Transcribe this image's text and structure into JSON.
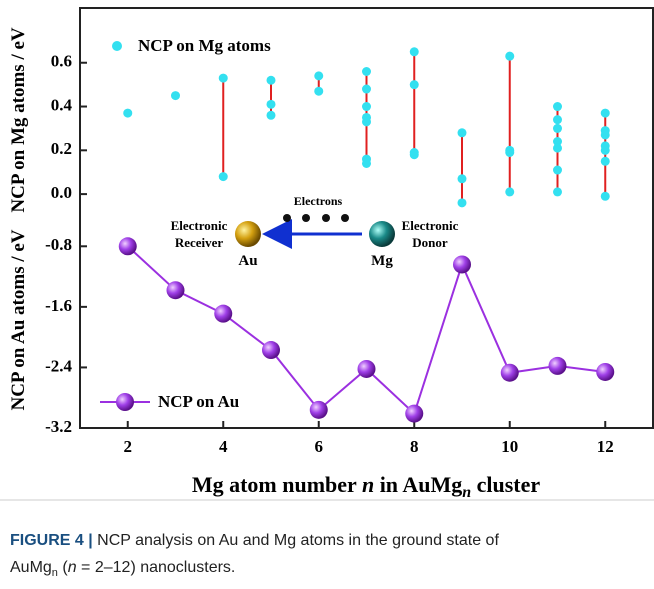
{
  "chart_data": [
    {
      "type": "scatter",
      "ylabel": "NCP on Mg atoms / eV",
      "series": [
        {
          "name": "NCP on Mg atoms",
          "color": "#33e0f0",
          "x": [
            2,
            3,
            4,
            4,
            5,
            5,
            5,
            6,
            6,
            7,
            7,
            7,
            7,
            7,
            7,
            7,
            8,
            8,
            8,
            8,
            9,
            9,
            9,
            10,
            10,
            10,
            10,
            11,
            11,
            11,
            11,
            11,
            11,
            11,
            12,
            12,
            12,
            12,
            12,
            12,
            12
          ],
          "values": [
            0.37,
            0.45,
            0.53,
            0.08,
            0.52,
            0.41,
            0.36,
            0.54,
            0.47,
            0.56,
            0.48,
            0.4,
            0.35,
            0.33,
            0.16,
            0.14,
            0.65,
            0.5,
            0.19,
            0.18,
            0.28,
            0.07,
            -0.04,
            0.63,
            0.2,
            0.19,
            0.01,
            0.4,
            0.34,
            0.3,
            0.24,
            0.21,
            0.11,
            0.01,
            0.37,
            0.29,
            0.27,
            0.22,
            0.2,
            0.15,
            -0.01
          ]
        }
      ],
      "range_line_color": "#e02020",
      "xlim": [
        1,
        13
      ],
      "ylim": [
        -0.1,
        0.85
      ],
      "yticks": [
        {
          "value": 0,
          "label": "0.0"
        },
        0.2,
        0.4,
        0.6
      ],
      "annotations": {
        "electrons": "Electrons",
        "receiver": [
          "Electronic",
          "Receiver"
        ],
        "au": "Au",
        "donor": [
          "Electronic",
          "Donor"
        ],
        "mg": "Mg"
      }
    },
    {
      "type": "line",
      "ylabel": "NCP on Au atoms / eV",
      "xlabel_parts": [
        "Mg atom number ",
        "n",
        " in AuMg",
        "n",
        " cluster"
      ],
      "x": [
        2,
        3,
        4,
        5,
        6,
        7,
        8,
        9,
        10,
        11,
        12
      ],
      "series": [
        {
          "name": "NCP on Au",
          "color": "#9b30e0",
          "values": [
            -0.8,
            -1.38,
            -1.69,
            -2.17,
            -2.96,
            -2.42,
            -3.01,
            -1.04,
            -2.47,
            -2.38,
            -2.46
          ]
        }
      ],
      "xlim": [
        1,
        13
      ],
      "ylim": [
        -3.2,
        -0.4
      ],
      "xticks": [
        2,
        4,
        6,
        8,
        10,
        12
      ],
      "yticks": [
        -3.2,
        -2.4,
        -1.6,
        -0.8
      ]
    }
  ],
  "caption": {
    "label": "FIGURE 4 |",
    "parts": [
      " NCP analysis on Au and Mg atoms in the ground state of",
      "AuMg",
      "n",
      " (",
      "n",
      " = 2–12) nanoclusters."
    ]
  }
}
